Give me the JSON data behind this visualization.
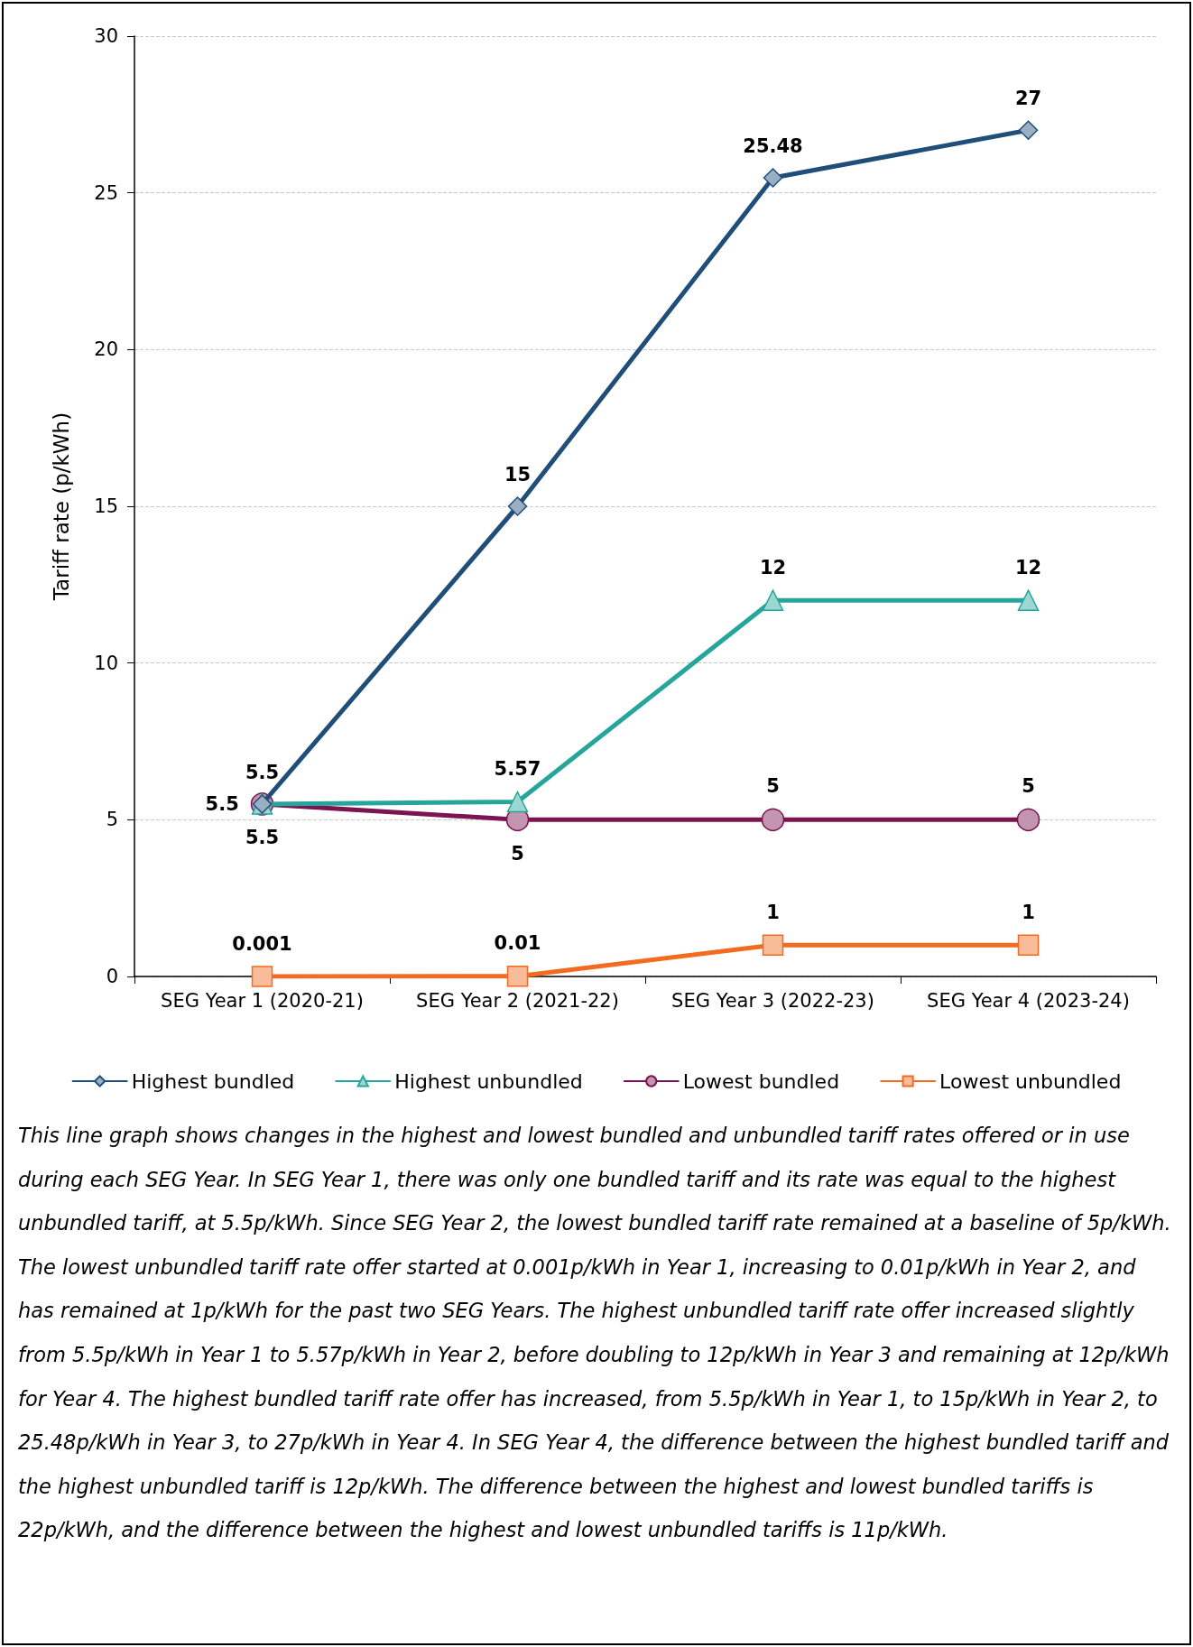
{
  "chart_data": {
    "type": "line",
    "ylabel": "Tariff rate (p/kWh)",
    "categories": [
      "SEG Year 1 (2020-21)",
      "SEG Year 2 (2021-22)",
      "SEG Year 3 (2022-23)",
      "SEG Year 4 (2023-24)"
    ],
    "series": [
      {
        "name": "Highest bundled",
        "color": "#1f4e79",
        "marker": "diamond",
        "values": [
          5.5,
          15,
          25.48,
          27
        ]
      },
      {
        "name": "Highest unbundled",
        "color": "#26a69a",
        "marker": "triangle",
        "values": [
          5.5,
          5.57,
          12,
          12
        ]
      },
      {
        "name": "Lowest bundled",
        "color": "#7b1450",
        "marker": "circle",
        "values": [
          5.5,
          5,
          5,
          5
        ]
      },
      {
        "name": "Lowest unbundled",
        "color": "#f26b21",
        "marker": "square",
        "values": [
          0.001,
          0.01,
          1,
          1
        ]
      }
    ],
    "ylim": [
      0,
      30
    ],
    "yticks": [
      0,
      5,
      10,
      15,
      20,
      25,
      30
    ],
    "grid": "y",
    "legend": "bottom",
    "data_labels": true,
    "line_style": "solid",
    "annotations": [
      "This line graph shows changes in the highest and lowest bundled and unbundled tariff rates offered or in use during each SEG Year. In SEG Year 1, there was only one bundled tariff and its rate was equal to the highest unbundled tariff, at 5.5p/kWh. Since SEG Year 2, the lowest bundled tariff rate remained at a baseline of 5p/kWh. The lowest unbundled tariff rate offer started at 0.001p/kWh in Year 1, increasing to 0.01p/kWh in Year 2, and has remained at 1p/kWh for the past two SEG Years. The highest unbundled tariff rate offer increased slightly from 5.5p/kWh in Year 1 to 5.57p/kWh in Year 2, before doubling to 12p/kWh in Year 3 and remaining at 12p/kWh for Year 4. The highest bundled tariff rate offer has increased, from 5.5p/kWh in Year 1, to 15p/kWh in Year 2, to 25.48p/kWh in Year 3, to 27p/kWh in Year 4. In SEG Year 4, the difference between the highest bundled tariff and the highest unbundled tariff is 12p/kWh. The difference between the highest and lowest bundled tariffs is 22p/kWh, and the difference between the highest and lowest unbundled tariffs is 11p/kWh."
    ]
  }
}
